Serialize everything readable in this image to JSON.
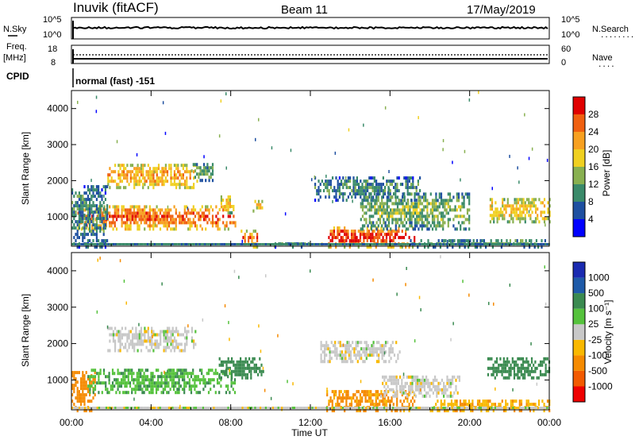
{
  "header": {
    "station": "Inuvik (fitACF)",
    "beam": "Beam 11",
    "date": "17/May/2019"
  },
  "sky_panel": {
    "left_label": "N.Sky",
    "left_ticks": [
      "10^5",
      "10^0"
    ],
    "right_ticks": [
      "10^5",
      "10^0"
    ],
    "right_label": "N.Search",
    "right_legend": "........"
  },
  "freq_panel": {
    "left_label_1": "Freq.",
    "left_label_2": "[MHz]",
    "left_ticks": [
      "18",
      "8"
    ],
    "right_ticks": [
      "60",
      "0"
    ],
    "right_label": "Nave",
    "right_legend": "...."
  },
  "cpid": {
    "label": "CPID",
    "value": "normal (fast) -151"
  },
  "power_panel": {
    "ylabel": "Slant Range [km]",
    "yticks": [
      "4000",
      "3000",
      "2000",
      "1000"
    ],
    "colorbar_label": "Power [dB]",
    "colorbar_ticks": [
      "28",
      "24",
      "20",
      "16",
      "12",
      "8",
      "4"
    ],
    "colors": [
      "#0000ff",
      "#1e4fa0",
      "#3a8a6a",
      "#88b050",
      "#f0d020",
      "#f7a020",
      "#f06010",
      "#e00000"
    ]
  },
  "velocity_panel": {
    "ylabel": "Slant Range [km]",
    "yticks": [
      "4000",
      "3000",
      "2000",
      "1000"
    ],
    "colorbar_label": "Velocity [m s⁻¹]",
    "colorbar_ticks": [
      "1000",
      "500",
      "100",
      "25",
      "-25",
      "-100",
      "-500",
      "-1000"
    ],
    "colors": [
      "#ee0000",
      "#f25a00",
      "#f58a00",
      "#f9b800",
      "#c8c8c8",
      "#55c23c",
      "#3a8a50",
      "#1e5aa8",
      "#1a2ab0"
    ]
  },
  "xaxis": {
    "ticks": [
      "00:00",
      "04:00",
      "08:00",
      "12:00",
      "16:00",
      "20:00",
      "00:00"
    ],
    "label": "Time UT"
  },
  "chart_data": [
    {
      "type": "line",
      "title": "N.Sky",
      "x_range": [
        "00:00",
        "24:00"
      ],
      "y_scale": "log",
      "ylim": [
        1,
        100000
      ],
      "series": [
        {
          "name": "N.Sky",
          "values": "near-constant, close to 10^5"
        }
      ]
    },
    {
      "type": "line",
      "title": "Freq.",
      "x_range": [
        "00:00",
        "24:00"
      ],
      "ylim": [
        8,
        18
      ],
      "series": [
        {
          "name": "Freq.",
          "values": "near-constant, about 10.5 MHz"
        },
        {
          "name": "Nave",
          "values": "near-constant"
        }
      ]
    },
    {
      "type": "heatmap",
      "title": "Power [dB]",
      "xlabel": "Time UT",
      "ylabel": "Slant Range [km]",
      "x_range": [
        "00:00",
        "24:00"
      ],
      "ylim": [
        180,
        4500
      ],
      "color_range": [
        0,
        32
      ],
      "regions": [
        {
          "t0": 0.3,
          "t1": 8.2,
          "r0": 700,
          "r1": 1350,
          "level": 18,
          "core": 26
        },
        {
          "t0": 1.8,
          "t1": 6.3,
          "r0": 1850,
          "r1": 2500,
          "level": 16,
          "core": 22
        },
        {
          "t0": 6.0,
          "t1": 7.1,
          "r0": 2050,
          "r1": 2550,
          "level": 8,
          "core": 12
        },
        {
          "t0": 7.4,
          "t1": 8.2,
          "r0": 1150,
          "r1": 1650,
          "level": 12,
          "core": 18
        },
        {
          "t0": 9.1,
          "t1": 9.6,
          "r0": 1200,
          "r1": 1500,
          "level": 14,
          "core": 20
        },
        {
          "t0": 0.0,
          "t1": 1.8,
          "r0": 200,
          "r1": 1950,
          "level": 6,
          "core": 10
        },
        {
          "t0": 8.5,
          "t1": 9.3,
          "r0": 200,
          "r1": 650,
          "level": 16,
          "core": 26
        },
        {
          "t0": 12.8,
          "t1": 17.2,
          "r0": 200,
          "r1": 750,
          "level": 18,
          "core": 30
        },
        {
          "t0": 10.2,
          "t1": 12.0,
          "r0": 200,
          "r1": 350,
          "level": 6,
          "core": 10
        },
        {
          "t0": 12.2,
          "t1": 17.5,
          "r0": 1500,
          "r1": 2150,
          "level": 6,
          "core": 10
        },
        {
          "t0": 14.5,
          "t1": 20.0,
          "r0": 700,
          "r1": 1700,
          "level": 8,
          "core": 14
        },
        {
          "t0": 21.0,
          "t1": 24.0,
          "r0": 900,
          "r1": 1550,
          "level": 14,
          "core": 20
        },
        {
          "t0": 17.0,
          "t1": 24.0,
          "r0": 200,
          "r1": 400,
          "level": 8,
          "core": 12
        }
      ]
    },
    {
      "type": "heatmap",
      "title": "Velocity [m s⁻¹]",
      "xlabel": "Time UT",
      "ylabel": "Slant Range [km]",
      "x_range": [
        "00:00",
        "24:00"
      ],
      "ylim": [
        180,
        4500
      ],
      "color_range": [
        -1000,
        1000
      ],
      "regions": [
        {
          "t0": 0.0,
          "t1": 1.2,
          "r0": 200,
          "r1": 1300,
          "v": -300
        },
        {
          "t0": 0.8,
          "t1": 8.2,
          "r0": 700,
          "r1": 1350,
          "v": 80
        },
        {
          "t0": 1.8,
          "t1": 6.3,
          "r0": 1850,
          "r1": 2500,
          "v": 0
        },
        {
          "t0": 7.4,
          "t1": 9.6,
          "r0": 1100,
          "r1": 1650,
          "v": 300
        },
        {
          "t0": 12.5,
          "t1": 16.5,
          "r0": 1550,
          "r1": 2150,
          "v": 0
        },
        {
          "t0": 12.8,
          "t1": 17.2,
          "r0": 200,
          "r1": 750,
          "v": -150
        },
        {
          "t0": 15.5,
          "t1": 19.5,
          "r0": 600,
          "r1": 1200,
          "v": 0
        },
        {
          "t0": 20.8,
          "t1": 24.0,
          "r0": 1100,
          "r1": 1650,
          "v": 300
        },
        {
          "t0": 18.0,
          "t1": 24.0,
          "r0": 200,
          "r1": 500,
          "v": -80
        }
      ]
    }
  ]
}
